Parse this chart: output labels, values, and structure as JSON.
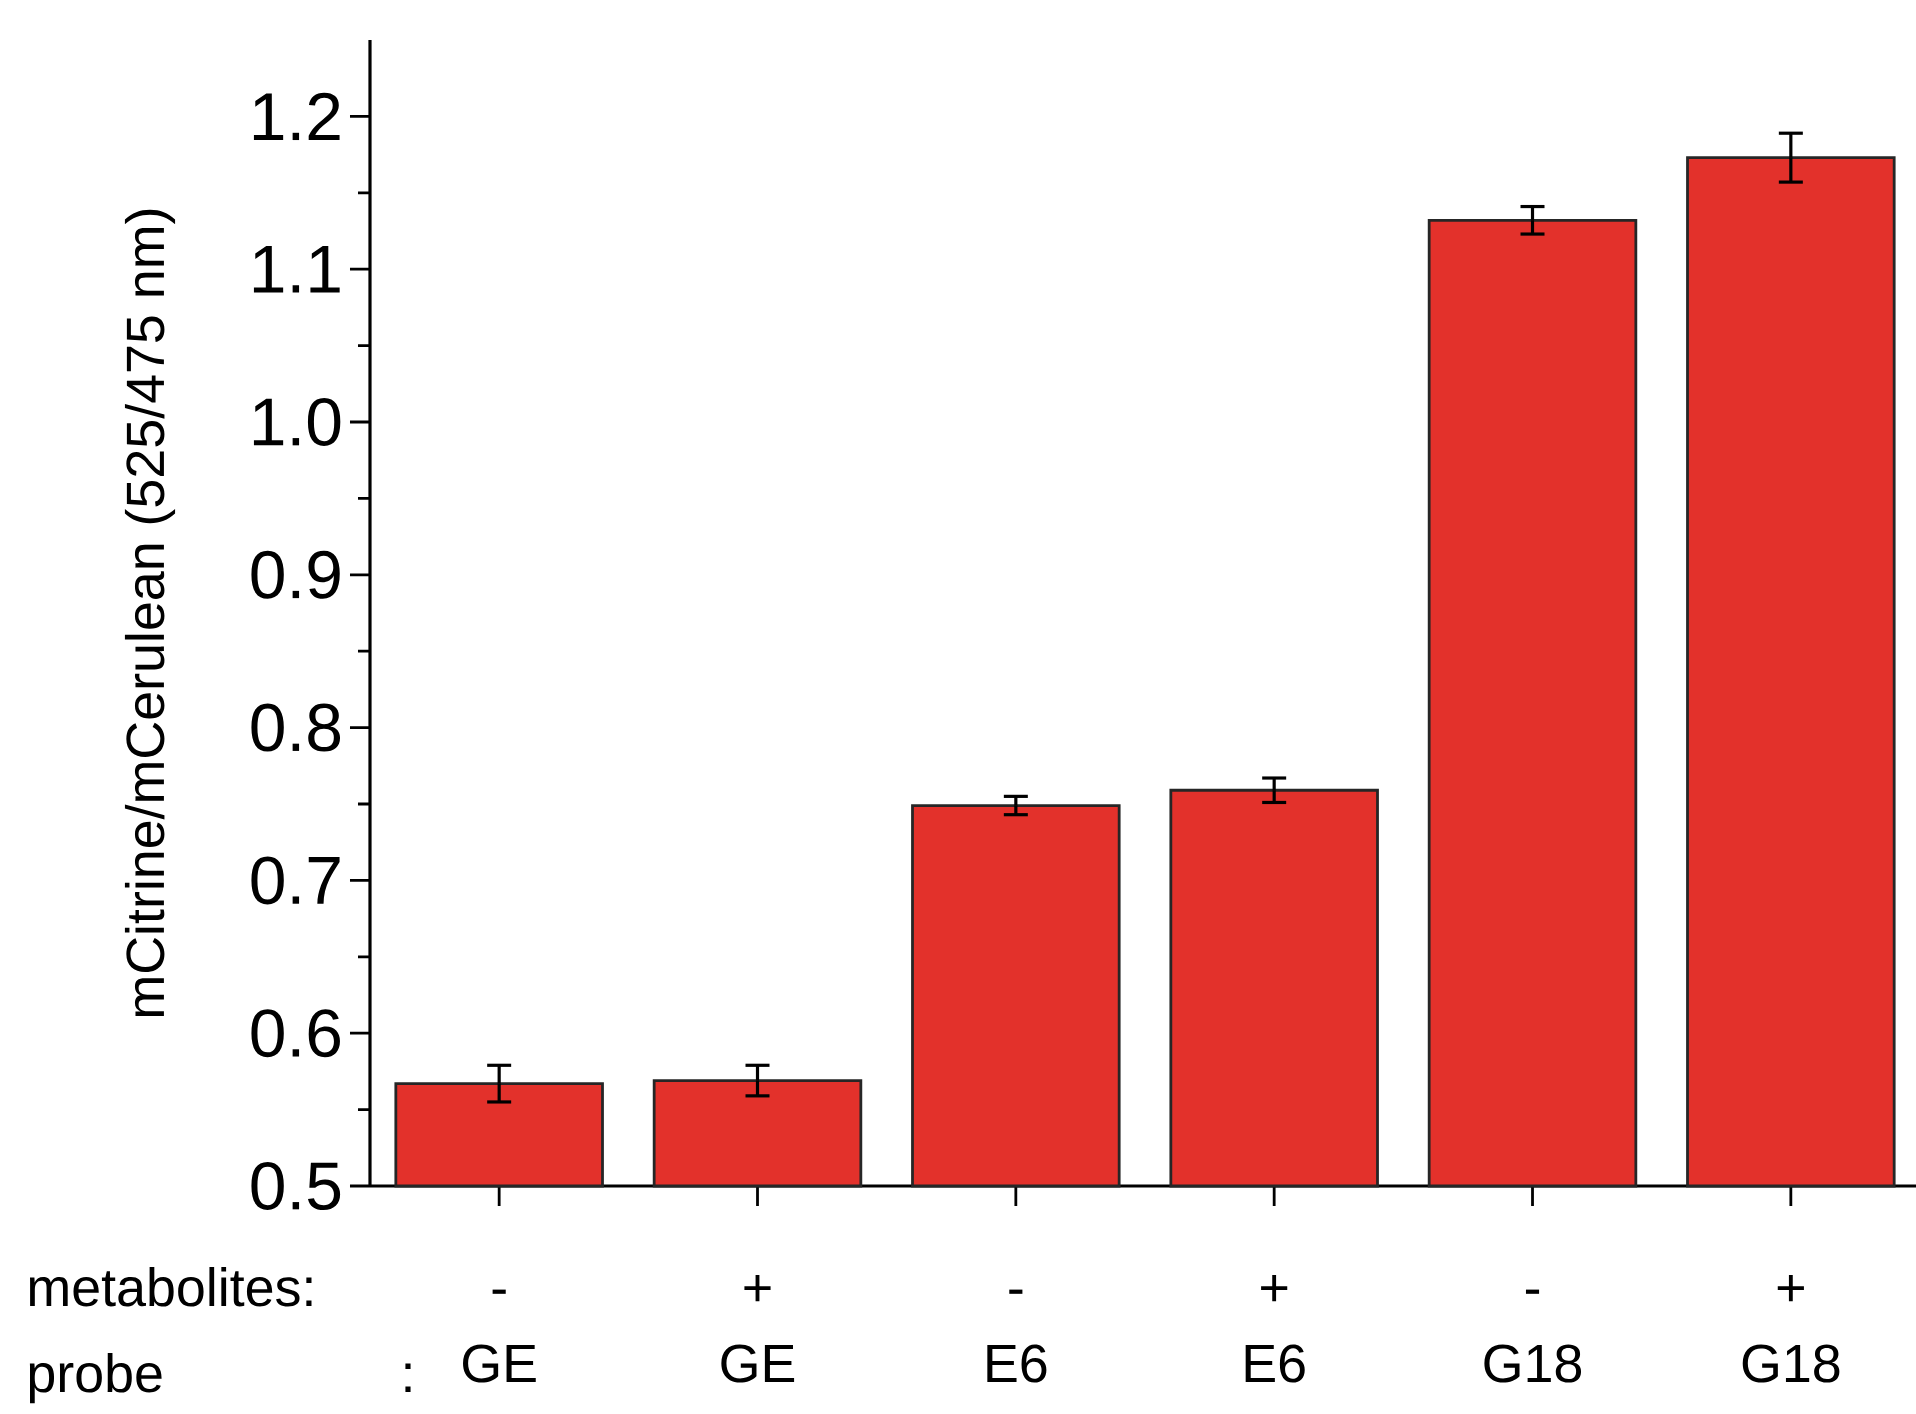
{
  "chart_data": {
    "type": "bar",
    "ylabel": "mCitrine/mCerulean (525/475 nm)",
    "categories": [
      "GE",
      "GE",
      "E6",
      "E6",
      "G18",
      "G18"
    ],
    "values": [
      0.567,
      0.569,
      0.749,
      0.759,
      1.132,
      1.173
    ],
    "errors": [
      0.012,
      0.01,
      0.006,
      0.008,
      0.009,
      0.016
    ],
    "color": "#e3312b",
    "ylim": [
      0.5,
      1.25
    ],
    "yticks": [
      0.5,
      {
        "value": 0.55,
        "label": null
      },
      0.6,
      {
        "value": 0.65,
        "label": null
      },
      0.7,
      {
        "value": 0.75,
        "label": null
      },
      0.8,
      {
        "value": 0.85,
        "label": null
      },
      0.9,
      {
        "value": 0.95,
        "label": null
      },
      {
        "value": 1.0,
        "label": "1.0"
      },
      {
        "value": 1.05,
        "label": null
      },
      1.1,
      {
        "value": 1.15,
        "label": null
      },
      1.2
    ],
    "annotations": [
      "metabolites:",
      "probe",
      ":",
      "-",
      "+",
      "-",
      "+",
      "-",
      "+"
    ],
    "grid": false
  }
}
